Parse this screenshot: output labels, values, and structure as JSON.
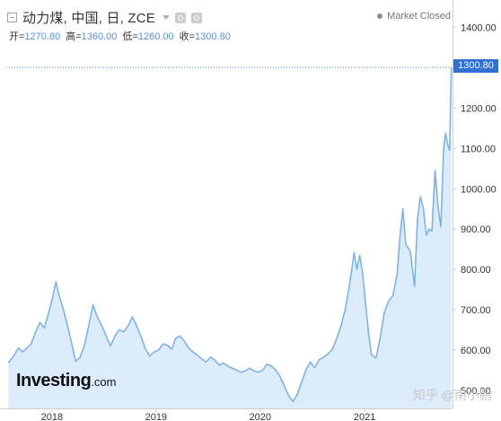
{
  "header": {
    "title": "动力煤, 中国, 日, ZCE",
    "ohlc": [
      {
        "label": "开=",
        "value": "1270.80"
      },
      {
        "label": "高=",
        "value": "1360.00"
      },
      {
        "label": "低=",
        "value": "1260.00"
      },
      {
        "label": "收=",
        "value": "1300.80"
      }
    ]
  },
  "status": {
    "label": "Market Closed"
  },
  "logo": {
    "main": "Investing",
    "suffix": ".com"
  },
  "watermark": "知乎 @南小鹏",
  "colors": {
    "line": "#7fb3e3",
    "area": "#dcecfa",
    "price_tag": "#2f6fd6",
    "guide": "#5a8fcf",
    "axis": "#d0d0d0"
  },
  "chart_data": {
    "type": "area",
    "title": "",
    "xlabel": "",
    "ylabel": "",
    "x_ticks": [
      "2018",
      "2019",
      "2020",
      "2021"
    ],
    "y_ticks": [
      "1400.00",
      "1300.00",
      "1200.00",
      "1100.00",
      "1000.00",
      "900.00",
      "800.00",
      "700.00",
      "600.00",
      "500.00"
    ],
    "ylim": [
      455,
      1455
    ],
    "last_price": "1300.80",
    "grid": false,
    "series": [
      {
        "values": [
          {
            "x": "2017-08-01",
            "y": 568
          },
          {
            "x": "2017-08-20",
            "y": 585
          },
          {
            "x": "2017-09-05",
            "y": 605
          },
          {
            "x": "2017-09-20",
            "y": 595
          },
          {
            "x": "2017-10-05",
            "y": 605
          },
          {
            "x": "2017-10-20",
            "y": 615
          },
          {
            "x": "2017-11-05",
            "y": 645
          },
          {
            "x": "2017-11-20",
            "y": 668
          },
          {
            "x": "2017-12-05",
            "y": 655
          },
          {
            "x": "2017-12-20",
            "y": 690
          },
          {
            "x": "2018-01-05",
            "y": 735
          },
          {
            "x": "2018-01-15",
            "y": 770
          },
          {
            "x": "2018-01-25",
            "y": 738
          },
          {
            "x": "2018-02-10",
            "y": 700
          },
          {
            "x": "2018-02-25",
            "y": 660
          },
          {
            "x": "2018-03-10",
            "y": 620
          },
          {
            "x": "2018-03-25",
            "y": 572
          },
          {
            "x": "2018-04-10",
            "y": 582
          },
          {
            "x": "2018-04-25",
            "y": 612
          },
          {
            "x": "2018-05-10",
            "y": 660
          },
          {
            "x": "2018-05-25",
            "y": 712
          },
          {
            "x": "2018-06-10",
            "y": 680
          },
          {
            "x": "2018-06-25",
            "y": 660
          },
          {
            "x": "2018-07-10",
            "y": 635
          },
          {
            "x": "2018-07-25",
            "y": 610
          },
          {
            "x": "2018-08-10",
            "y": 635
          },
          {
            "x": "2018-08-25",
            "y": 650
          },
          {
            "x": "2018-09-10",
            "y": 645
          },
          {
            "x": "2018-09-25",
            "y": 660
          },
          {
            "x": "2018-10-10",
            "y": 682
          },
          {
            "x": "2018-10-25",
            "y": 660
          },
          {
            "x": "2018-11-10",
            "y": 632
          },
          {
            "x": "2018-11-25",
            "y": 602
          },
          {
            "x": "2018-12-10",
            "y": 585
          },
          {
            "x": "2018-12-25",
            "y": 595
          },
          {
            "x": "2019-01-10",
            "y": 600
          },
          {
            "x": "2019-01-25",
            "y": 615
          },
          {
            "x": "2019-02-10",
            "y": 612
          },
          {
            "x": "2019-02-25",
            "y": 602
          },
          {
            "x": "2019-03-10",
            "y": 628
          },
          {
            "x": "2019-03-25",
            "y": 635
          },
          {
            "x": "2019-04-10",
            "y": 622
          },
          {
            "x": "2019-04-25",
            "y": 605
          },
          {
            "x": "2019-05-10",
            "y": 595
          },
          {
            "x": "2019-05-25",
            "y": 588
          },
          {
            "x": "2019-06-10",
            "y": 578
          },
          {
            "x": "2019-06-25",
            "y": 570
          },
          {
            "x": "2019-07-10",
            "y": 582
          },
          {
            "x": "2019-07-25",
            "y": 576
          },
          {
            "x": "2019-08-10",
            "y": 562
          },
          {
            "x": "2019-08-25",
            "y": 568
          },
          {
            "x": "2019-09-10",
            "y": 560
          },
          {
            "x": "2019-09-25",
            "y": 555
          },
          {
            "x": "2019-10-10",
            "y": 550
          },
          {
            "x": "2019-10-25",
            "y": 545
          },
          {
            "x": "2019-11-10",
            "y": 548
          },
          {
            "x": "2019-11-25",
            "y": 555
          },
          {
            "x": "2019-12-10",
            "y": 548
          },
          {
            "x": "2019-12-25",
            "y": 545
          },
          {
            "x": "2020-01-10",
            "y": 550
          },
          {
            "x": "2020-01-25",
            "y": 565
          },
          {
            "x": "2020-02-10",
            "y": 560
          },
          {
            "x": "2020-02-25",
            "y": 550
          },
          {
            "x": "2020-03-10",
            "y": 535
          },
          {
            "x": "2020-03-25",
            "y": 512
          },
          {
            "x": "2020-04-10",
            "y": 486
          },
          {
            "x": "2020-04-25",
            "y": 472
          },
          {
            "x": "2020-05-10",
            "y": 490
          },
          {
            "x": "2020-05-25",
            "y": 520
          },
          {
            "x": "2020-06-10",
            "y": 552
          },
          {
            "x": "2020-06-25",
            "y": 570
          },
          {
            "x": "2020-07-10",
            "y": 556
          },
          {
            "x": "2020-07-25",
            "y": 575
          },
          {
            "x": "2020-08-10",
            "y": 582
          },
          {
            "x": "2020-08-25",
            "y": 590
          },
          {
            "x": "2020-09-10",
            "y": 602
          },
          {
            "x": "2020-09-25",
            "y": 628
          },
          {
            "x": "2020-10-10",
            "y": 660
          },
          {
            "x": "2020-10-25",
            "y": 700
          },
          {
            "x": "2020-11-05",
            "y": 745
          },
          {
            "x": "2020-11-15",
            "y": 790
          },
          {
            "x": "2020-11-25",
            "y": 842
          },
          {
            "x": "2020-12-05",
            "y": 800
          },
          {
            "x": "2020-12-15",
            "y": 835
          },
          {
            "x": "2020-12-25",
            "y": 790
          },
          {
            "x": "2021-01-05",
            "y": 710
          },
          {
            "x": "2021-01-15",
            "y": 640
          },
          {
            "x": "2021-01-25",
            "y": 588
          },
          {
            "x": "2021-02-10",
            "y": 580
          },
          {
            "x": "2021-02-25",
            "y": 632
          },
          {
            "x": "2021-03-10",
            "y": 690
          },
          {
            "x": "2021-03-25",
            "y": 720
          },
          {
            "x": "2021-04-10",
            "y": 735
          },
          {
            "x": "2021-04-25",
            "y": 790
          },
          {
            "x": "2021-05-05",
            "y": 882
          },
          {
            "x": "2021-05-15",
            "y": 950
          },
          {
            "x": "2021-05-25",
            "y": 862
          },
          {
            "x": "2021-06-10",
            "y": 845
          },
          {
            "x": "2021-06-25",
            "y": 758
          },
          {
            "x": "2021-07-05",
            "y": 922
          },
          {
            "x": "2021-07-15",
            "y": 980
          },
          {
            "x": "2021-07-25",
            "y": 955
          },
          {
            "x": "2021-08-05",
            "y": 885
          },
          {
            "x": "2021-08-15",
            "y": 900
          },
          {
            "x": "2021-08-25",
            "y": 895
          },
          {
            "x": "2021-09-05",
            "y": 1045
          },
          {
            "x": "2021-09-15",
            "y": 958
          },
          {
            "x": "2021-09-25",
            "y": 905
          },
          {
            "x": "2021-10-05",
            "y": 1100
          },
          {
            "x": "2021-10-12",
            "y": 1138
          },
          {
            "x": "2021-10-19",
            "y": 1110
          },
          {
            "x": "2021-10-26",
            "y": 1095
          },
          {
            "x": "2021-11-01",
            "y": 1300.8
          }
        ]
      }
    ]
  },
  "axis_render": {
    "x_ticks_at": [
      "2018-01-01",
      "2019-01-01",
      "2020-01-01",
      "2021-01-01"
    ]
  }
}
